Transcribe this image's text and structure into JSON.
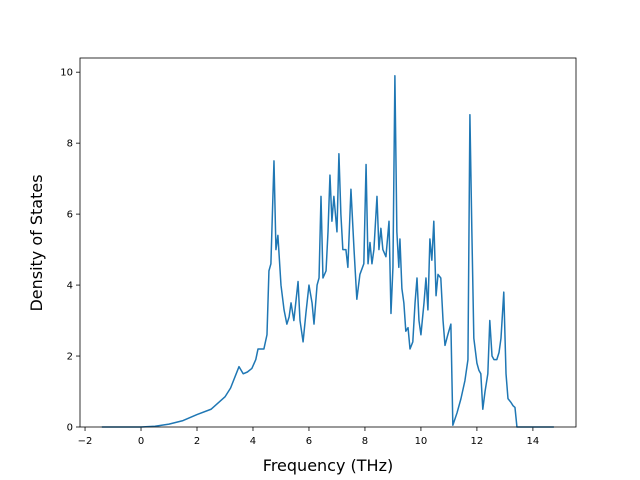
{
  "chart_data": {
    "type": "line",
    "x_label": "Frequency (THz)",
    "y_label": "Density of States",
    "color": "#1f77b4",
    "x": [
      -1.4,
      -0.5,
      0,
      0.5,
      1.0,
      1.5,
      2.0,
      2.5,
      3.0,
      3.2,
      3.5,
      3.65,
      3.8,
      3.96,
      4.1,
      4.18,
      4.39,
      4.5,
      4.57,
      4.64,
      4.75,
      4.82,
      4.89,
      5.0,
      5.11,
      5.21,
      5.29,
      5.36,
      5.46,
      5.61,
      5.68,
      5.79,
      5.89,
      6.0,
      6.11,
      6.18,
      6.29,
      6.36,
      6.43,
      6.5,
      6.61,
      6.68,
      6.75,
      6.82,
      6.89,
      7.0,
      7.07,
      7.14,
      7.21,
      7.32,
      7.39,
      7.5,
      7.61,
      7.71,
      7.82,
      7.96,
      8.04,
      8.11,
      8.18,
      8.25,
      8.32,
      8.43,
      8.5,
      8.57,
      8.64,
      8.75,
      8.86,
      8.93,
      9.0,
      9.07,
      9.14,
      9.21,
      9.25,
      9.32,
      9.39,
      9.46,
      9.54,
      9.61,
      9.71,
      9.79,
      9.86,
      9.93,
      10.0,
      10.11,
      10.18,
      10.25,
      10.32,
      10.39,
      10.46,
      10.54,
      10.61,
      10.71,
      10.79,
      10.86,
      10.96,
      11.07,
      11.14,
      11.29,
      11.43,
      11.57,
      11.68,
      11.75,
      11.82,
      11.89,
      12.0,
      12.07,
      12.14,
      12.21,
      12.29,
      12.39,
      12.46,
      12.54,
      12.61,
      12.71,
      12.79,
      12.86,
      12.96,
      13.04,
      13.11,
      13.21,
      13.29,
      13.36,
      13.43,
      14.75
    ],
    "values": [
      0,
      0,
      0,
      0.02,
      0.08,
      0.18,
      0.35,
      0.5,
      0.85,
      1.1,
      1.7,
      1.5,
      1.55,
      1.65,
      1.9,
      2.2,
      2.2,
      2.6,
      4.4,
      4.6,
      7.5,
      5.0,
      5.4,
      4.0,
      3.3,
      2.9,
      3.1,
      3.5,
      3.0,
      4.1,
      3.0,
      2.4,
      3.2,
      4.0,
      3.5,
      2.9,
      4.0,
      4.2,
      6.5,
      4.2,
      4.4,
      5.5,
      7.1,
      5.8,
      6.5,
      5.5,
      7.7,
      6.0,
      5.0,
      5.0,
      4.5,
      6.7,
      5.0,
      3.6,
      4.3,
      4.6,
      7.4,
      4.6,
      5.2,
      4.6,
      5.0,
      6.5,
      5.0,
      5.6,
      5.0,
      4.8,
      5.8,
      3.2,
      4.5,
      9.9,
      5.5,
      4.5,
      5.3,
      3.9,
      3.5,
      2.7,
      2.8,
      2.2,
      2.4,
      3.5,
      4.2,
      3.0,
      2.6,
      3.5,
      4.2,
      3.3,
      5.3,
      4.7,
      5.8,
      3.7,
      4.3,
      4.2,
      3.0,
      2.3,
      2.6,
      2.9,
      0.05,
      0.4,
      0.8,
      1.3,
      1.9,
      8.8,
      5.5,
      2.5,
      1.8,
      1.6,
      1.5,
      0.5,
      1.0,
      1.5,
      3.0,
      2.0,
      1.9,
      1.9,
      2.1,
      2.5,
      3.8,
      1.5,
      0.8,
      0.7,
      0.6,
      0.55,
      0,
      0
    ],
    "xlim": [
      -2.18,
      15.54
    ],
    "ylim": [
      0,
      10.4
    ],
    "xticks": [
      {
        "value": -2,
        "label": "−2"
      },
      0,
      2,
      4,
      6,
      8,
      10,
      12,
      14
    ],
    "yticks": [
      0,
      2,
      4,
      6,
      8,
      10
    ]
  }
}
